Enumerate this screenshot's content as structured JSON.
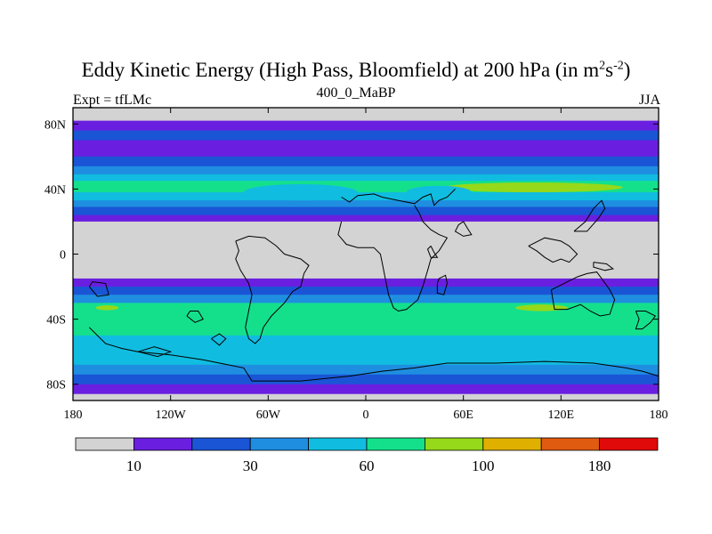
{
  "header": {
    "title_main": "Eddy Kinetic Energy (High Pass, Bloomfield) at 200 hPa (in m",
    "title_sup1": "2",
    "title_mid": "s",
    "title_sup2": "-2",
    "title_end": ")",
    "left_label": "Expt = tfLMc",
    "center_label": "400_0_MaBP",
    "right_label": "JJA"
  },
  "chart_data": {
    "type": "heatmap",
    "title": "Eddy Kinetic Energy (High Pass, Bloomfield) at 200 hPa (in m^2 s^-2)",
    "xlim": [
      -180,
      180
    ],
    "ylim": [
      -90,
      90
    ],
    "x_ticks": [
      {
        "value": -180,
        "label": "180"
      },
      {
        "value": -120,
        "label": "120W"
      },
      {
        "value": -60,
        "label": "60W"
      },
      {
        "value": 0,
        "label": "0"
      },
      {
        "value": 60,
        "label": "60E"
      },
      {
        "value": 120,
        "label": "120E"
      },
      {
        "value": 180,
        "label": "180"
      }
    ],
    "y_ticks": [
      {
        "value": 80,
        "label": "80N"
      },
      {
        "value": 40,
        "label": "40N"
      },
      {
        "value": 0,
        "label": "0"
      },
      {
        "value": -40,
        "label": "40S"
      },
      {
        "value": -80,
        "label": "80S"
      }
    ],
    "colorbar": {
      "colors": [
        "#d3d3d3",
        "#6a1fe0",
        "#1a55d6",
        "#1f8ee0",
        "#10bde0",
        "#14e08c",
        "#96d81a",
        "#e0b000",
        "#e05a10",
        "#e00a0a"
      ],
      "labels": [
        {
          "after_box": 1,
          "label": "10"
        },
        {
          "after_box": 3,
          "label": "30"
        },
        {
          "after_box": 5,
          "label": "60"
        },
        {
          "after_box": 7,
          "label": "100"
        },
        {
          "after_box": 9,
          "label": "180"
        }
      ]
    },
    "zonal_bands": [
      {
        "lat_top": 90,
        "lat_bottom": 82,
        "level": 0
      },
      {
        "lat_top": 82,
        "lat_bottom": 76,
        "level": 1
      },
      {
        "lat_top": 76,
        "lat_bottom": 70,
        "level": 2
      },
      {
        "lat_top": 70,
        "lat_bottom": 60,
        "level": 1
      },
      {
        "lat_top": 60,
        "lat_bottom": 54,
        "level": 2
      },
      {
        "lat_top": 54,
        "lat_bottom": 49,
        "level": 3
      },
      {
        "lat_top": 49,
        "lat_bottom": 45,
        "level": 4
      },
      {
        "lat_top": 45,
        "lat_bottom": 38,
        "level": 5
      },
      {
        "lat_top": 38,
        "lat_bottom": 33,
        "level": 4
      },
      {
        "lat_top": 33,
        "lat_bottom": 29,
        "level": 3
      },
      {
        "lat_top": 29,
        "lat_bottom": 24,
        "level": 2
      },
      {
        "lat_top": 24,
        "lat_bottom": 20,
        "level": 1
      },
      {
        "lat_top": 20,
        "lat_bottom": -15,
        "level": 0
      },
      {
        "lat_top": -15,
        "lat_bottom": -20,
        "level": 1
      },
      {
        "lat_top": -20,
        "lat_bottom": -25,
        "level": 2
      },
      {
        "lat_top": -25,
        "lat_bottom": -30,
        "level": 3
      },
      {
        "lat_top": -30,
        "lat_bottom": -40,
        "level": 5
      },
      {
        "lat_top": -40,
        "lat_bottom": -50,
        "level": 5
      },
      {
        "lat_top": -50,
        "lat_bottom": -58,
        "level": 4
      },
      {
        "lat_top": -58,
        "lat_bottom": -68,
        "level": 4
      },
      {
        "lat_top": -68,
        "lat_bottom": -74,
        "level": 3
      },
      {
        "lat_top": -74,
        "lat_bottom": -80,
        "level": 2
      },
      {
        "lat_top": -80,
        "lat_bottom": -86,
        "level": 1
      },
      {
        "lat_top": -86,
        "lat_bottom": -90,
        "level": 0
      }
    ],
    "features": [
      {
        "shape": "ellipse",
        "level": 5,
        "lon": -162,
        "lat": 41,
        "lon_radius": 20,
        "lat_radius": 3
      },
      {
        "shape": "ellipse",
        "level": 6,
        "lon": 103,
        "lat": 41,
        "lon_radius": 55,
        "lat_radius": 3
      },
      {
        "shape": "ellipse",
        "level": 6,
        "lon": 108,
        "lat": -33,
        "lon_radius": 16,
        "lat_radius": 2
      },
      {
        "shape": "ellipse",
        "level": 6,
        "lon": -159,
        "lat": -33,
        "lon_radius": 7,
        "lat_radius": 1.5
      },
      {
        "shape": "ellipse",
        "level": 4,
        "lon": -40,
        "lat": 38,
        "lon_radius": 35,
        "lat_radius": 5
      },
      {
        "shape": "ellipse",
        "level": 4,
        "lon": 45,
        "lat": 38,
        "lon_radius": 20,
        "lat_radius": 4
      }
    ],
    "gray_tongue": [
      [
        -180,
        3
      ],
      [
        -150,
        1
      ],
      [
        -110,
        -2
      ],
      [
        -70,
        -6
      ],
      [
        -40,
        -9
      ],
      [
        -10,
        -11
      ],
      [
        30,
        -12
      ],
      [
        80,
        -13
      ],
      [
        130,
        -12
      ],
      [
        180,
        -12
      ]
    ],
    "coastlines": [
      [
        [
          -15,
          35
        ],
        [
          -10,
          32
        ],
        [
          -5,
          36
        ],
        [
          5,
          37
        ],
        [
          10,
          35
        ],
        [
          20,
          33
        ],
        [
          30,
          31
        ],
        [
          35,
          35
        ],
        [
          40,
          37
        ],
        [
          42,
          30
        ],
        [
          45,
          33
        ],
        [
          50,
          35
        ],
        [
          55,
          40
        ]
      ],
      [
        [
          -15,
          20
        ],
        [
          -17,
          12
        ],
        [
          -12,
          6
        ],
        [
          -5,
          4
        ],
        [
          5,
          4
        ],
        [
          9,
          0
        ],
        [
          10,
          -5
        ],
        [
          12,
          -15
        ],
        [
          14,
          -25
        ],
        [
          17,
          -33
        ],
        [
          20,
          -35
        ],
        [
          25,
          -34
        ],
        [
          32,
          -28
        ],
        [
          35,
          -20
        ],
        [
          38,
          -10
        ],
        [
          40,
          -3
        ],
        [
          45,
          2
        ],
        [
          50,
          10
        ],
        [
          45,
          12
        ],
        [
          40,
          15
        ],
        [
          35,
          20
        ],
        [
          33,
          25
        ],
        [
          30,
          30
        ]
      ],
      [
        [
          -80,
          8
        ],
        [
          -78,
          2
        ],
        [
          -80,
          -3
        ],
        [
          -77,
          -10
        ],
        [
          -72,
          -18
        ],
        [
          -70,
          -25
        ],
        [
          -72,
          -35
        ],
        [
          -74,
          -45
        ],
        [
          -72,
          -52
        ],
        [
          -68,
          -55
        ],
        [
          -65,
          -52
        ],
        [
          -63,
          -45
        ],
        [
          -58,
          -38
        ],
        [
          -50,
          -30
        ],
        [
          -45,
          -23
        ],
        [
          -40,
          -20
        ],
        [
          -38,
          -12
        ],
        [
          -35,
          -7
        ],
        [
          -40,
          -3
        ],
        [
          -50,
          0
        ],
        [
          -55,
          5
        ],
        [
          -62,
          10
        ],
        [
          -72,
          11
        ],
        [
          -80,
          8
        ]
      ],
      [
        [
          -170,
          -45
        ],
        [
          -165,
          -50
        ],
        [
          -160,
          -55
        ],
        [
          -150,
          -58
        ],
        [
          -140,
          -60
        ],
        [
          -120,
          -62
        ],
        [
          -100,
          -65
        ],
        [
          -85,
          -68
        ],
        [
          -75,
          -70
        ],
        [
          -70,
          -78
        ],
        [
          -40,
          -78
        ],
        [
          -10,
          -75
        ],
        [
          10,
          -72
        ],
        [
          30,
          -70
        ],
        [
          50,
          -67
        ],
        [
          80,
          -67
        ],
        [
          110,
          -66
        ],
        [
          140,
          -67
        ],
        [
          160,
          -70
        ],
        [
          170,
          -72
        ],
        [
          180,
          -75
        ]
      ],
      [
        [
          114,
          -22
        ],
        [
          116,
          -34
        ],
        [
          124,
          -34
        ],
        [
          132,
          -31
        ],
        [
          138,
          -35
        ],
        [
          144,
          -38
        ],
        [
          150,
          -37
        ],
        [
          153,
          -28
        ],
        [
          150,
          -22
        ],
        [
          145,
          -15
        ],
        [
          142,
          -11
        ],
        [
          136,
          -12
        ],
        [
          130,
          -14
        ],
        [
          124,
          -17
        ],
        [
          118,
          -20
        ],
        [
          114,
          -22
        ]
      ],
      [
        [
          100,
          5
        ],
        [
          105,
          2
        ],
        [
          110,
          -2
        ],
        [
          115,
          -5
        ],
        [
          120,
          -3
        ],
        [
          125,
          -5
        ],
        [
          128,
          -2
        ],
        [
          130,
          0
        ],
        [
          125,
          5
        ],
        [
          120,
          8
        ],
        [
          110,
          10
        ],
        [
          100,
          5
        ]
      ],
      [
        [
          140,
          -5
        ],
        [
          148,
          -6
        ],
        [
          152,
          -9
        ],
        [
          147,
          -10
        ],
        [
          140,
          -8
        ],
        [
          140,
          -5
        ]
      ],
      [
        [
          45,
          -15
        ],
        [
          49,
          -13
        ],
        [
          50,
          -18
        ],
        [
          48,
          -25
        ],
        [
          44,
          -24
        ],
        [
          44,
          -18
        ],
        [
          45,
          -15
        ]
      ],
      [
        [
          166,
          -35
        ],
        [
          172,
          -35
        ],
        [
          178,
          -38
        ],
        [
          175,
          -42
        ],
        [
          170,
          -46
        ],
        [
          166,
          -46
        ],
        [
          168,
          -40
        ],
        [
          166,
          -35
        ]
      ],
      [
        [
          128,
          14
        ],
        [
          135,
          20
        ],
        [
          140,
          28
        ],
        [
          145,
          33
        ],
        [
          147,
          28
        ],
        [
          143,
          22
        ],
        [
          136,
          14
        ],
        [
          128,
          14
        ]
      ],
      [
        [
          40,
          5
        ],
        [
          42,
          1
        ],
        [
          44,
          -2
        ],
        [
          40,
          -2
        ],
        [
          38,
          3
        ],
        [
          40,
          5
        ]
      ],
      [
        [
          60,
          20
        ],
        [
          63,
          15
        ],
        [
          65,
          12
        ],
        [
          60,
          11
        ],
        [
          55,
          14
        ],
        [
          57,
          18
        ],
        [
          60,
          20
        ]
      ],
      [
        [
          -170,
          -20
        ],
        [
          -165,
          -26
        ],
        [
          -158,
          -25
        ],
        [
          -160,
          -18
        ],
        [
          -168,
          -17
        ],
        [
          -170,
          -20
        ]
      ],
      [
        [
          -110,
          -38
        ],
        [
          -105,
          -42
        ],
        [
          -100,
          -40
        ],
        [
          -103,
          -35
        ],
        [
          -108,
          -35
        ],
        [
          -110,
          -38
        ]
      ],
      [
        [
          -95,
          -52
        ],
        [
          -90,
          -56
        ],
        [
          -86,
          -52
        ],
        [
          -90,
          -49
        ],
        [
          -95,
          -52
        ]
      ],
      [
        [
          -140,
          -60
        ],
        [
          -130,
          -57
        ],
        [
          -120,
          -60
        ],
        [
          -128,
          -63
        ],
        [
          -140,
          -60
        ]
      ]
    ]
  }
}
